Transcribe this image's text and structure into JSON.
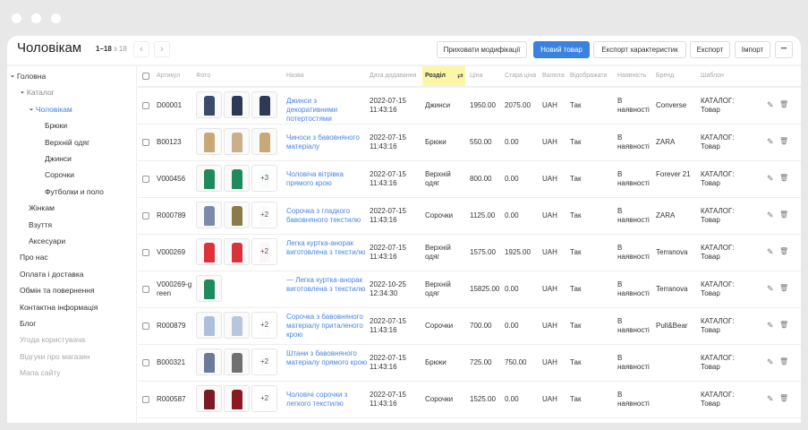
{
  "header": {
    "title": "Чоловікам",
    "range": "1–18",
    "of": "з 18",
    "prev": "‹",
    "next": "›",
    "buttons": {
      "hide_mods": "Приховати модифікації",
      "new_product": "Новий товар",
      "export_specs": "Експорт характеристик",
      "export": "Експорт",
      "import": "Імпорт",
      "more": "•••"
    }
  },
  "colors": {
    "accent": "#3b82e0",
    "highlight": "#fbf7a6"
  },
  "sidebar": {
    "items": [
      {
        "label": "Головна",
        "level": 0,
        "chevron": true,
        "state": "normal"
      },
      {
        "label": "Каталог",
        "level": 1,
        "chevron": true,
        "state": "muted"
      },
      {
        "label": "Чоловікам",
        "level": 2,
        "chevron": true,
        "state": "active"
      },
      {
        "label": "Брюки",
        "level": 3,
        "state": "normal"
      },
      {
        "label": "Верхній одяг",
        "level": 3,
        "state": "normal"
      },
      {
        "label": "Джинси",
        "level": 3,
        "state": "normal"
      },
      {
        "label": "Сорочки",
        "level": 3,
        "state": "normal"
      },
      {
        "label": "Футболки и поло",
        "level": 3,
        "state": "normal"
      },
      {
        "label": "Жінкам",
        "level": 2,
        "state": "normal"
      },
      {
        "label": "Взуття",
        "level": 2,
        "state": "normal"
      },
      {
        "label": "Аксесуари",
        "level": 2,
        "state": "normal"
      },
      {
        "label": "Про нас",
        "level": 1,
        "state": "normal"
      },
      {
        "label": "Оплата і доставка",
        "level": 1,
        "state": "normal"
      },
      {
        "label": "Обмін та повернення",
        "level": 1,
        "state": "normal"
      },
      {
        "label": "Контактна інформація",
        "level": 1,
        "state": "normal"
      },
      {
        "label": "Блог",
        "level": 1,
        "state": "normal"
      },
      {
        "label": "Угода користувача",
        "level": 1,
        "state": "dim"
      },
      {
        "label": "Відгуки про магазин",
        "level": 1,
        "state": "dim"
      },
      {
        "label": "Мапа сайту",
        "level": 1,
        "state": "dim"
      }
    ]
  },
  "table": {
    "columns": [
      "Артикул",
      "Фото",
      "Назва",
      "Дата додавання",
      "Розділ",
      "Ціна",
      "Стара ціна",
      "Валюта",
      "Відображати",
      "Наявність",
      "Бренд",
      "Шаблон"
    ],
    "sorted_column": "Розділ",
    "rows": [
      {
        "sku": "D00001",
        "photos": [
          "#3a4a6a",
          "#2d3a55",
          "#2d3a55"
        ],
        "more": "",
        "name": "Джинси з декоративними потертостями",
        "date": "2022-07-15 11:43:16",
        "section": "Джинси",
        "price": "1950.00",
        "old_price": "2075.00",
        "currency": "UAH",
        "visible": "Так",
        "stock": "В наявності",
        "brand": "Converse",
        "template": "КАТАЛОГ: Товар"
      },
      {
        "sku": "B00123",
        "photos": [
          "#c9a877",
          "#c9b089",
          "#c9a877"
        ],
        "more": "",
        "name": "Чиноси з бавовняного матеріалу",
        "date": "2022-07-15 11:43:16",
        "section": "Брюки",
        "price": "550.00",
        "old_price": "0.00",
        "currency": "UAH",
        "visible": "Так",
        "stock": "В наявності",
        "brand": "ZARA",
        "template": "КАТАЛОГ: Товар"
      },
      {
        "sku": "V000456",
        "photos": [
          "#1f8a5a",
          "#1f8a5a",
          "#cfe6df"
        ],
        "more": "+3",
        "name": "Чоловіча вітрівка прямого крою",
        "date": "2022-07-15 11:43:16",
        "section": "Верхній одяг",
        "price": "800.00",
        "old_price": "0.00",
        "currency": "UAH",
        "visible": "Так",
        "stock": "В наявності",
        "brand": "Forever 21",
        "template": "КАТАЛОГ: Товар"
      },
      {
        "sku": "R000789",
        "photos": [
          "#7a8aa8",
          "#8b7a4a",
          "#e0e0e0"
        ],
        "more": "+2",
        "name": "Сорочка з гладкого бавовняного текстилю",
        "date": "2022-07-15 11:43:16",
        "section": "Сорочки",
        "price": "1125.00",
        "old_price": "0.00",
        "currency": "UAH",
        "visible": "Так",
        "stock": "В наявності",
        "brand": "ZARA",
        "template": "КАТАЛОГ: Товар"
      },
      {
        "sku": "V000269",
        "photos": [
          "#e0303a",
          "#d8323a",
          "#f2c4c6"
        ],
        "more": "+2",
        "name": "Легка куртка-анорак виготовлена з текстилю",
        "date": "2022-07-15 11:43:16",
        "section": "Верхній одяг",
        "price": "1575.00",
        "old_price": "1925.00",
        "currency": "UAH",
        "visible": "Так",
        "stock": "В наявності",
        "brand": "Terranova",
        "template": "КАТАЛОГ: Товар"
      },
      {
        "sku": "V000269-green",
        "photos": [
          "#1f8a5a"
        ],
        "more": "",
        "name": "— Легка куртка-анорак виготовлена з текстилю",
        "date": "2022-10-25 12:34:30",
        "section": "Верхній одяг",
        "price": "15825.00",
        "old_price": "0.00",
        "currency": "UAH",
        "visible": "Так",
        "stock": "В наявності",
        "brand": "Terranova",
        "template": "КАТАЛОГ: Товар"
      },
      {
        "sku": "R000879",
        "photos": [
          "#aebfdc",
          "#b8c6dc",
          "#eeeeee"
        ],
        "more": "+2",
        "name": "Сорочка з бавовняного матеріалу приталеного крою",
        "date": "2022-07-15 11:43:16",
        "section": "Сорочки",
        "price": "700.00",
        "old_price": "0.00",
        "currency": "UAH",
        "visible": "Так",
        "stock": "В наявності",
        "brand": "Pull&Bear",
        "template": "КАТАЛОГ: Товар"
      },
      {
        "sku": "B000321",
        "photos": [
          "#6a7a98",
          "#707070",
          "#eeeeee"
        ],
        "more": "+2",
        "name": "Штани з бавовняного матеріалу прямого крою",
        "date": "2022-07-15 11:43:16",
        "section": "Брюки",
        "price": "725.00",
        "old_price": "750.00",
        "currency": "UAH",
        "visible": "Так",
        "stock": "В наявності",
        "brand": "",
        "template": "КАТАЛОГ: Товар"
      },
      {
        "sku": "R000587",
        "photos": [
          "#7a1a22",
          "#8a1a22",
          "#eeeeee"
        ],
        "more": "+2",
        "name": "Чоловічі сорочки з легкого текстилю",
        "date": "2022-07-15 11:43:16",
        "section": "Сорочки",
        "price": "1525.00",
        "old_price": "0.00",
        "currency": "UAH",
        "visible": "Так",
        "stock": "В наявності",
        "brand": "",
        "template": "КАТАЛОГ: Товар"
      }
    ]
  }
}
